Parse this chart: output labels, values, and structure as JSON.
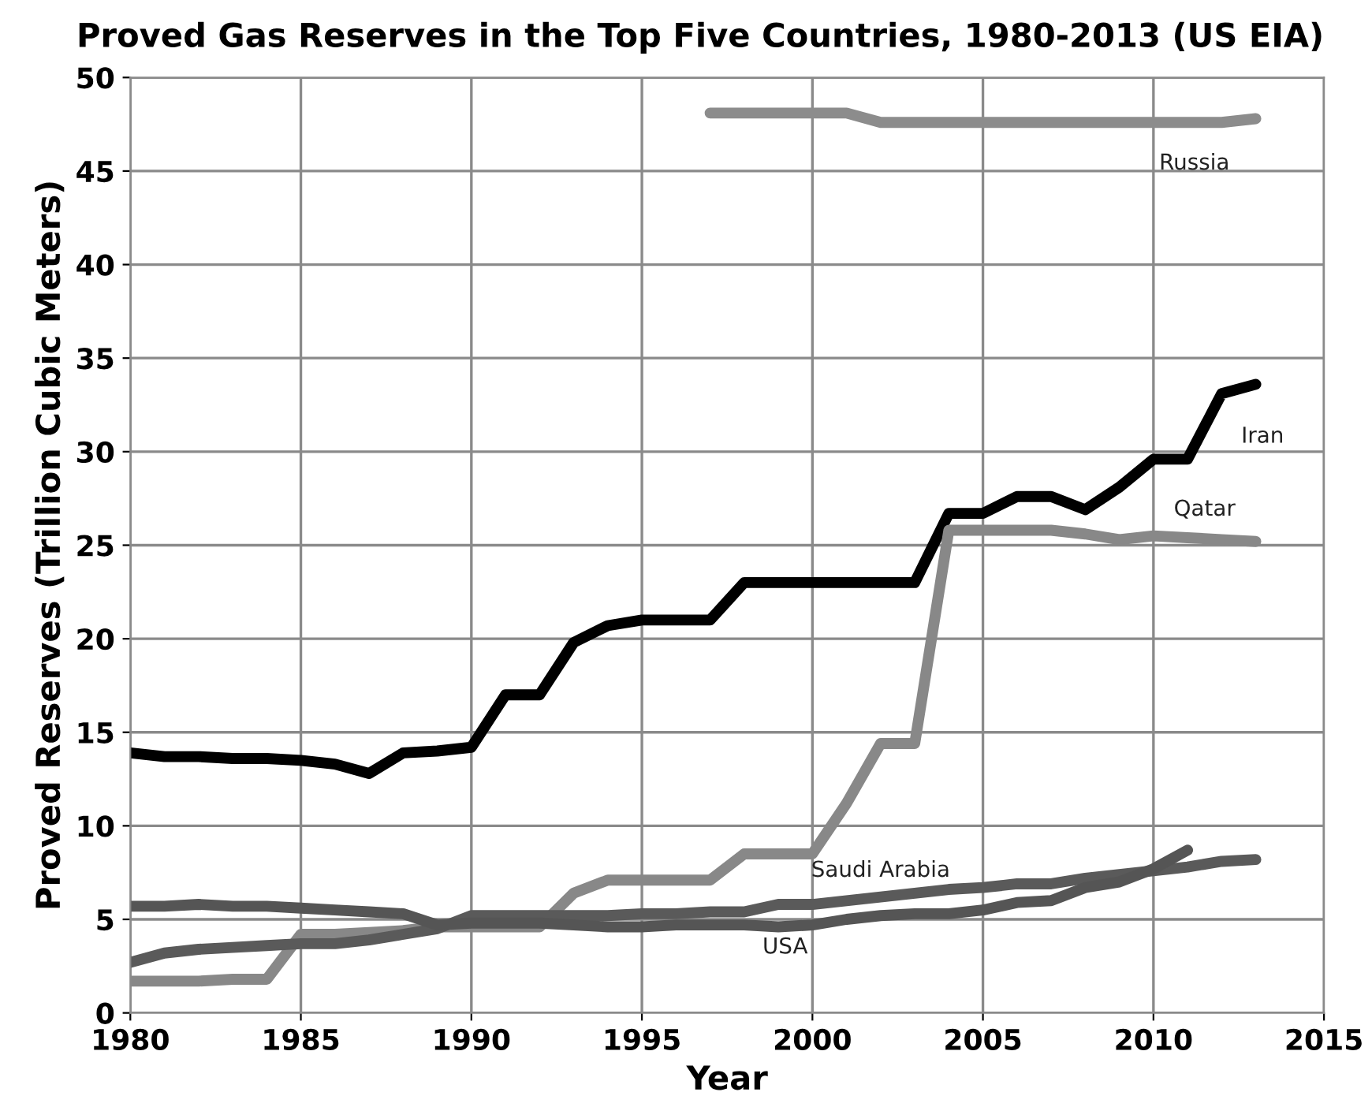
{
  "chart_data": {
    "type": "line",
    "title": "Proved Gas Reserves in the Top Five Countries, 1980-2013 (US EIA)",
    "xlabel": "Year",
    "ylabel": "Proved Reserves (Trillion Cubic Meters)",
    "x": [
      1980,
      1981,
      1982,
      1983,
      1984,
      1985,
      1986,
      1987,
      1988,
      1989,
      1990,
      1991,
      1992,
      1993,
      1994,
      1995,
      1996,
      1997,
      1998,
      1999,
      2000,
      2001,
      2002,
      2003,
      2004,
      2005,
      2006,
      2007,
      2008,
      2009,
      2010,
      2011,
      2012,
      2013
    ],
    "series": [
      {
        "name": "Russia",
        "color": "#8c8c8c",
        "values": [
          null,
          null,
          null,
          null,
          null,
          null,
          null,
          null,
          null,
          null,
          null,
          null,
          null,
          null,
          null,
          null,
          null,
          48.1,
          48.1,
          48.1,
          48.1,
          48.1,
          47.6,
          47.6,
          47.6,
          47.6,
          47.6,
          47.6,
          47.6,
          47.6,
          47.6,
          47.6,
          47.6,
          47.8
        ]
      },
      {
        "name": "Iran",
        "color": "#000000",
        "values": [
          13.9,
          13.7,
          13.7,
          13.6,
          13.6,
          13.5,
          13.3,
          12.8,
          13.9,
          14.0,
          14.2,
          17.0,
          17.0,
          19.8,
          20.7,
          21.0,
          21.0,
          21.0,
          23.0,
          23.0,
          23.0,
          23.0,
          23.0,
          23.0,
          26.7,
          26.7,
          27.6,
          27.6,
          26.9,
          28.1,
          29.6,
          29.6,
          33.1,
          33.6
        ]
      },
      {
        "name": "Qatar",
        "color": "#888888",
        "values": [
          1.7,
          1.7,
          1.7,
          1.8,
          1.8,
          4.2,
          4.2,
          4.3,
          4.4,
          4.6,
          4.6,
          4.6,
          4.6,
          6.4,
          7.1,
          7.1,
          7.1,
          7.1,
          8.5,
          8.5,
          8.5,
          11.2,
          14.4,
          14.4,
          25.8,
          25.8,
          25.8,
          25.8,
          25.6,
          25.3,
          25.5,
          25.4,
          25.3,
          25.2
        ]
      },
      {
        "name": "Saudi Arabia",
        "color": "#5a5a5a",
        "values": [
          2.7,
          3.2,
          3.4,
          3.5,
          3.6,
          3.7,
          3.7,
          3.9,
          4.2,
          4.5,
          5.2,
          5.2,
          5.2,
          5.2,
          5.2,
          5.3,
          5.3,
          5.4,
          5.4,
          5.8,
          5.8,
          6.0,
          6.2,
          6.4,
          6.6,
          6.7,
          6.9,
          6.9,
          7.2,
          7.4,
          7.6,
          7.8,
          8.1,
          8.2
        ]
      },
      {
        "name": "USA",
        "color": "#555555",
        "values": [
          5.7,
          5.7,
          5.8,
          5.7,
          5.7,
          5.6,
          5.5,
          5.4,
          5.3,
          4.7,
          4.8,
          4.8,
          4.8,
          4.7,
          4.6,
          4.6,
          4.7,
          4.7,
          4.7,
          4.6,
          4.7,
          5.0,
          5.2,
          5.3,
          5.3,
          5.5,
          5.9,
          6.0,
          6.7,
          7.0,
          7.7,
          8.7,
          null,
          null
        ]
      }
    ],
    "xlim": [
      1980,
      2015
    ],
    "xticks": [
      1980,
      1985,
      1990,
      1995,
      2000,
      2005,
      2010,
      2015
    ],
    "ylim": [
      0,
      50
    ],
    "yticks": [
      0,
      5,
      10,
      15,
      20,
      25,
      30,
      35,
      40,
      45,
      50
    ],
    "grid": true,
    "legend": false,
    "marker": "none",
    "line_style": "solid"
  }
}
